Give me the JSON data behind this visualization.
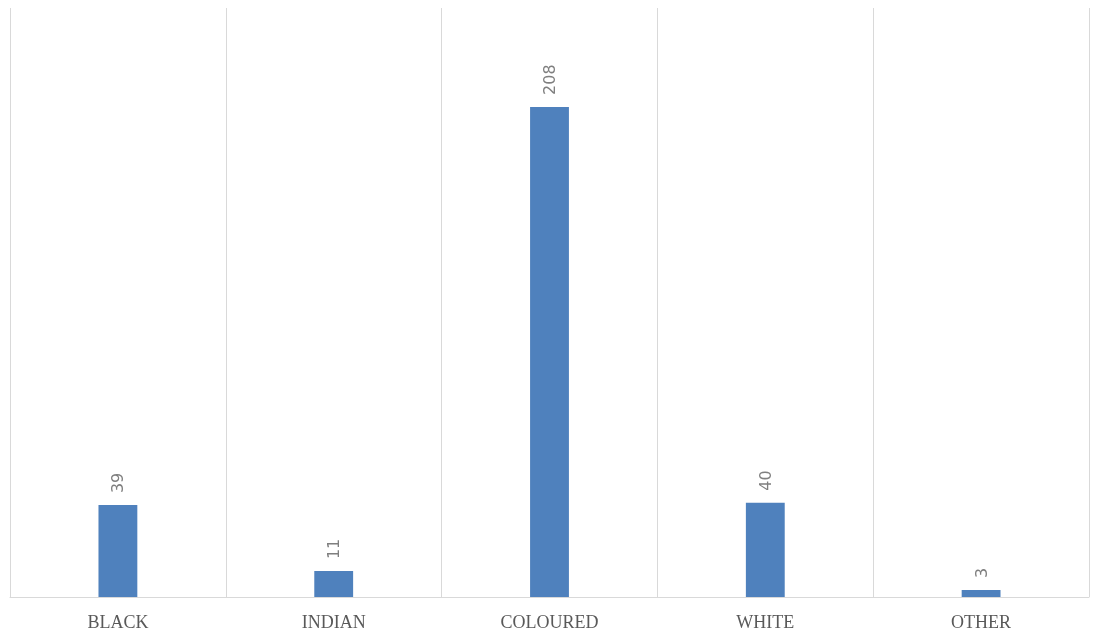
{
  "chart_data": {
    "type": "bar",
    "categories": [
      "BLACK",
      "INDIAN",
      "COLOURED",
      "WHITE",
      "OTHER"
    ],
    "values": [
      39,
      11,
      208,
      40,
      3
    ],
    "color": "#4f81bd",
    "data_labels": true,
    "grid": "x"
  }
}
